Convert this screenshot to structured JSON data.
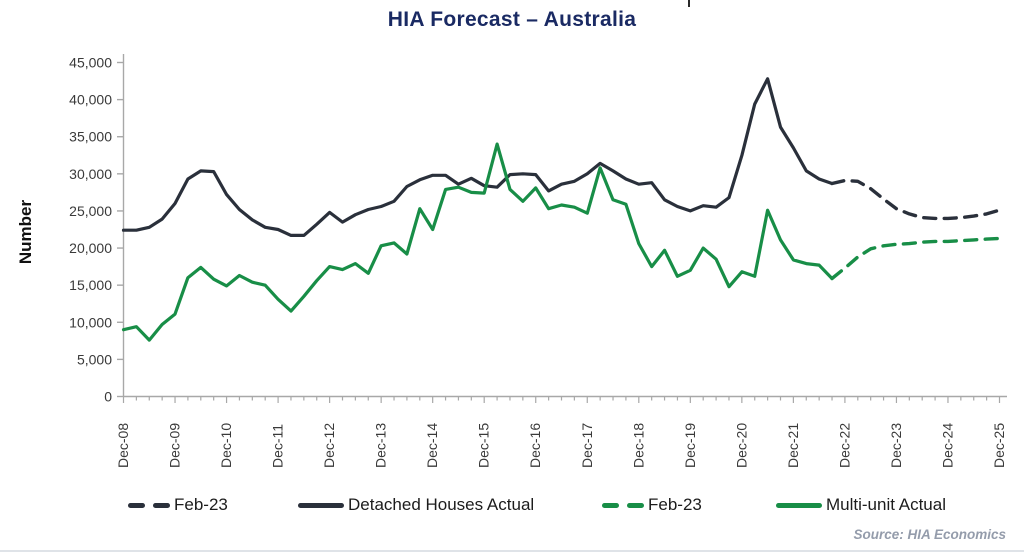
{
  "title": "HIA Forecast – Australia",
  "source": "Source: HIA Economics",
  "colors": {
    "detached": "#2a303b",
    "multi_unit": "#188e47",
    "title_text": "#1a2a63",
    "source_text": "#949cab",
    "axis": "#a8a8a8",
    "tick_text": "#3a3a3a"
  },
  "y_axis": {
    "label": "Number",
    "tick_labels": [
      "45,000",
      "40,000",
      "35,000",
      "30,000",
      "25,000",
      "20,000",
      "15,000",
      "10,000",
      "5,000",
      "0"
    ],
    "max": 45000,
    "min": 0,
    "step": 5000
  },
  "x_axis": {
    "labels": [
      "Dec-08",
      "Dec-09",
      "Dec-10",
      "Dec-11",
      "Dec-12",
      "Dec-13",
      "Dec-14",
      "Dec-15",
      "Dec-16",
      "Dec-17",
      "Dec-18",
      "Dec-19",
      "Dec-20",
      "Dec-21",
      "Dec-22",
      "Dec-23",
      "Dec-24",
      "Dec-25"
    ],
    "quarters_per_label": 4
  },
  "legend": [
    {
      "label": "Feb-23",
      "color": "#2a303b",
      "style": "dashed"
    },
    {
      "label": "Detached Houses Actual",
      "color": "#2a303b",
      "style": "solid"
    },
    {
      "label": "Feb-23",
      "color": "#188e47",
      "style": "dashed"
    },
    {
      "label": "Multi-unit Actual",
      "color": "#188e47",
      "style": "solid"
    }
  ],
  "chart_data": {
    "type": "line",
    "x_unit": "quarter",
    "x_start": "Dec-08",
    "x_end": "Dec-25",
    "total_quarters": 68,
    "ylim": [
      0,
      45000
    ],
    "grid": false,
    "legend_position": "bottom",
    "series": [
      {
        "name": "Detached Houses Actual",
        "color": "#2a303b",
        "style": "solid",
        "start_quarter": 0,
        "values": [
          22400,
          22400,
          22800,
          23900,
          26000,
          29300,
          30400,
          30300,
          27200,
          25200,
          23800,
          22800,
          22500,
          21700,
          21700,
          23200,
          24800,
          23500,
          24500,
          25200,
          25600,
          26300,
          28300,
          29200,
          29800,
          29800,
          28600,
          29400,
          28400,
          28200,
          29900,
          30000,
          29900,
          27700,
          28600,
          29000,
          30000,
          31400,
          30400,
          29300,
          28600,
          28800,
          26500,
          25600,
          25000,
          25700,
          25500,
          26800,
          32500,
          39400,
          42800,
          36300,
          33500,
          30400,
          29300,
          28700
        ]
      },
      {
        "name": "Detached Houses Feb-23 forecast",
        "color": "#2a303b",
        "style": "dashed",
        "start_quarter": 55,
        "values": [
          28700,
          29100,
          29000,
          28000,
          26600,
          25300,
          24600,
          24100,
          24000,
          24000,
          24100,
          24300,
          24600,
          25100
        ]
      },
      {
        "name": "Multi-unit Actual",
        "color": "#188e47",
        "style": "solid",
        "start_quarter": 0,
        "values": [
          9000,
          9400,
          7600,
          9700,
          11100,
          16000,
          17400,
          15800,
          14900,
          16300,
          15400,
          15000,
          13100,
          11500,
          13500,
          15600,
          17500,
          17100,
          17900,
          16600,
          20300,
          20700,
          19200,
          25300,
          22500,
          27900,
          28200,
          27500,
          27400,
          34000,
          27900,
          26300,
          28100,
          25300,
          25800,
          25500,
          24700,
          30800,
          26500,
          25900,
          20600,
          17500,
          19700,
          16200,
          17000,
          20000,
          18500,
          14800,
          16800,
          16200,
          25100,
          21100,
          18400,
          17900,
          17700,
          15900
        ]
      },
      {
        "name": "Multi-unit Feb-23 forecast",
        "color": "#188e47",
        "style": "dashed",
        "start_quarter": 55,
        "values": [
          15900,
          17300,
          18800,
          19900,
          20300,
          20500,
          20600,
          20800,
          20900,
          20900,
          21000,
          21100,
          21200,
          21300
        ]
      }
    ]
  }
}
